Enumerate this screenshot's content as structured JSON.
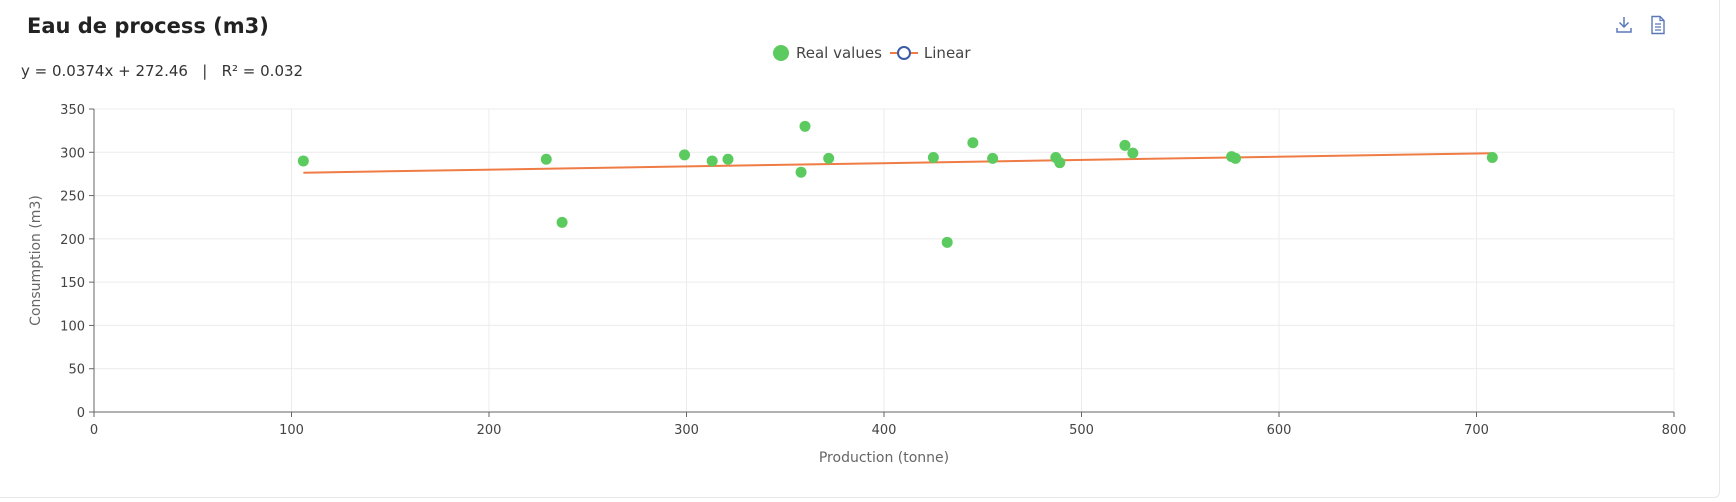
{
  "header": {
    "title": "Eau de process (m3)",
    "equation": "y = 0.0374x + 272.46   |   R² = 0.032"
  },
  "toolbar": {
    "download_icon": "download-icon",
    "document_icon": "document-icon"
  },
  "legend": {
    "items": [
      {
        "label": "Real values",
        "color": "#5ccb5f",
        "icon": "filled-circle"
      },
      {
        "label": "Linear",
        "color": "#ef7b45",
        "marker_color": "#3b5ba5",
        "icon": "line-with-hollow-circle"
      }
    ]
  },
  "chart_data": {
    "type": "scatter",
    "xlabel": "Production (tonne)",
    "ylabel": "Consumption (m3)",
    "xlim": [
      0,
      800
    ],
    "ylim": [
      0,
      350
    ],
    "xticks": [
      0,
      100,
      200,
      300,
      400,
      500,
      600,
      700,
      800
    ],
    "yticks": [
      0,
      50,
      100,
      150,
      200,
      250,
      300,
      350
    ],
    "grid": true,
    "legend_position": "top-center",
    "series": [
      {
        "name": "Real values",
        "type": "scatter",
        "color": "#5ccb5f",
        "points": [
          [
            106,
            290
          ],
          [
            229,
            292
          ],
          [
            237,
            219
          ],
          [
            299,
            297
          ],
          [
            313,
            290
          ],
          [
            321,
            292
          ],
          [
            358,
            277
          ],
          [
            360,
            330
          ],
          [
            372,
            293
          ],
          [
            425,
            294
          ],
          [
            432,
            196
          ],
          [
            445,
            311
          ],
          [
            455,
            293
          ],
          [
            487,
            294
          ],
          [
            489,
            288
          ],
          [
            522,
            308
          ],
          [
            526,
            299
          ],
          [
            576,
            295
          ],
          [
            578,
            293
          ],
          [
            708,
            294
          ]
        ]
      },
      {
        "name": "Linear",
        "type": "line",
        "color": "#ef7b45",
        "slope": 0.0374,
        "intercept": 272.46,
        "x_range": [
          106,
          708
        ]
      }
    ]
  }
}
